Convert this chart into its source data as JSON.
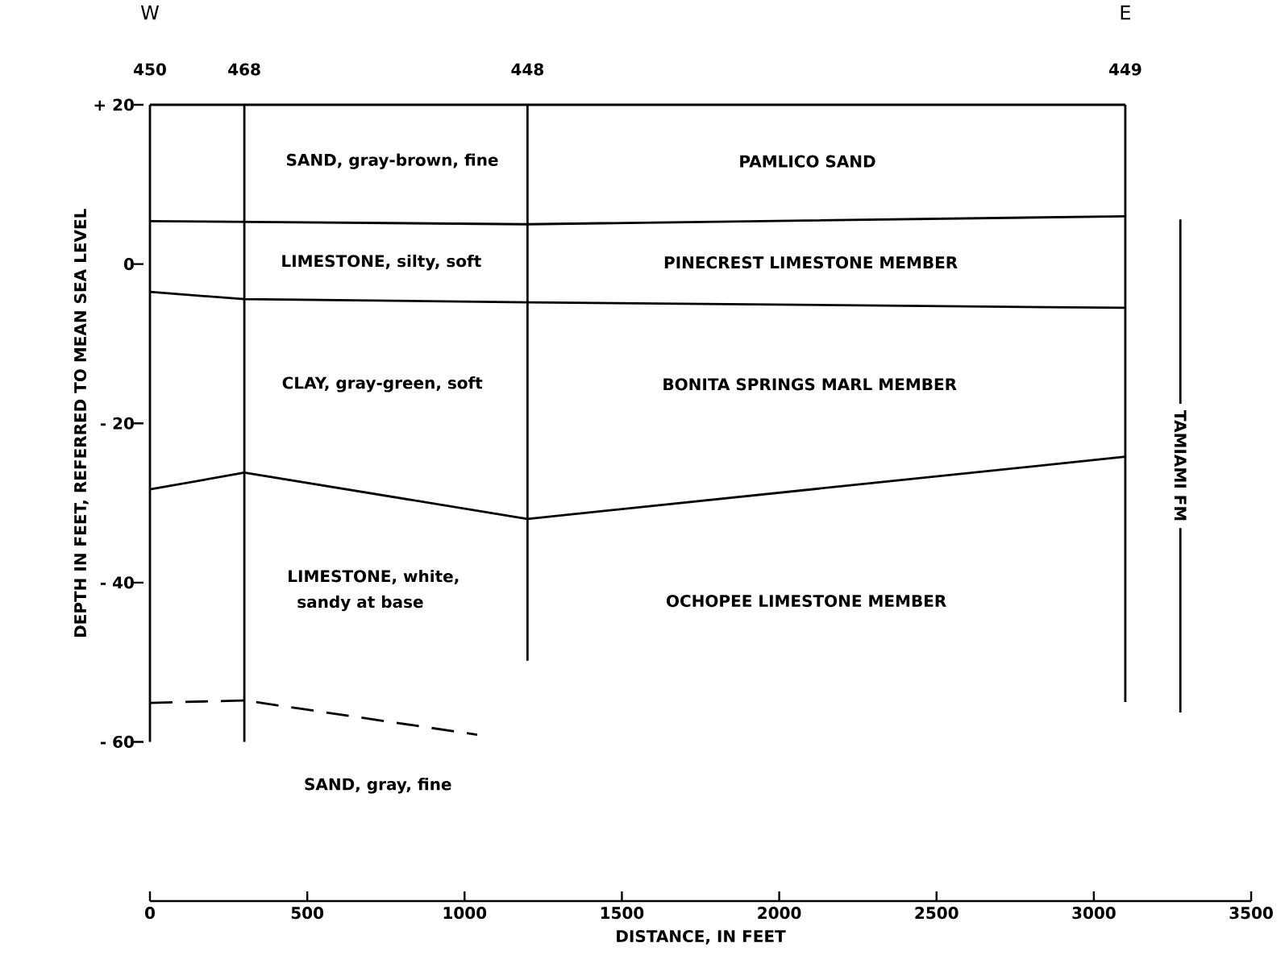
{
  "chart_data": {
    "type": "line",
    "xlabel": "DISTANCE, IN FEET",
    "ylabel": "DEPTH IN FEET, REFERRED TO MEAN SEA LEVEL",
    "xlim": [
      0,
      3500
    ],
    "xticks": [
      0,
      500,
      1000,
      1500,
      2000,
      2500,
      3000,
      3500
    ],
    "ylim": [
      -80,
      20
    ],
    "yticks": [
      {
        "value": 20,
        "label": "+ 20"
      },
      0,
      {
        "value": -20,
        "label": "- 20"
      },
      {
        "value": -40,
        "label": "- 40"
      },
      {
        "value": -60,
        "label": "- 60"
      }
    ],
    "marker": "none",
    "series": [
      {
        "color": "#000000",
        "x": [
          0,
          3100
        ],
        "values": [
          20,
          20
        ]
      },
      {
        "color": "#000000",
        "x": [
          0,
          300,
          1200,
          3100
        ],
        "values": [
          5.4,
          5.3,
          5,
          6
        ]
      },
      {
        "color": "#000000",
        "x": [
          0,
          300,
          1200,
          3100
        ],
        "values": [
          -3.5,
          -4.4,
          -4.8,
          -5.5
        ]
      },
      {
        "color": "#000000",
        "x": [
          0,
          300,
          1200,
          3100
        ],
        "values": [
          -28.3,
          -26.2,
          -32,
          -24.2
        ]
      },
      {
        "color": "#000000",
        "line_style": "dashed",
        "x": [
          0,
          300,
          1040
        ],
        "values": [
          -55.1,
          -54.8,
          -59.1
        ]
      },
      {
        "name": "450",
        "color": "#000000",
        "x": [
          0,
          0
        ],
        "values": [
          20,
          -60
        ]
      },
      {
        "name": "468",
        "color": "#000000",
        "x": [
          300,
          300
        ],
        "values": [
          20,
          -60
        ]
      },
      {
        "name": "448",
        "color": "#000000",
        "x": [
          1200,
          1200
        ],
        "values": [
          20,
          -49.8
        ]
      },
      {
        "name": "449",
        "color": "#000000",
        "x": [
          3100,
          3100
        ],
        "values": [
          20,
          -55
        ]
      },
      {
        "name": "TAMIAMI FM",
        "color": "#000000",
        "x": [
          3275,
          3275
        ],
        "values": [
          5.6,
          -56.3
        ]
      }
    ],
    "annotations": [
      "W",
      "E",
      "SAND, gray-brown, fine",
      "PAMLICO SAND",
      "LIMESTONE, silty, soft",
      "PINECREST LIMESTONE MEMBER",
      "CLAY, gray-green, soft",
      "BONITA SPRINGS MARL MEMBER",
      "LIMESTONE, white,",
      "sandy at base",
      "OCHOPEE LIMESTONE MEMBER",
      "SAND, gray, fine"
    ]
  }
}
